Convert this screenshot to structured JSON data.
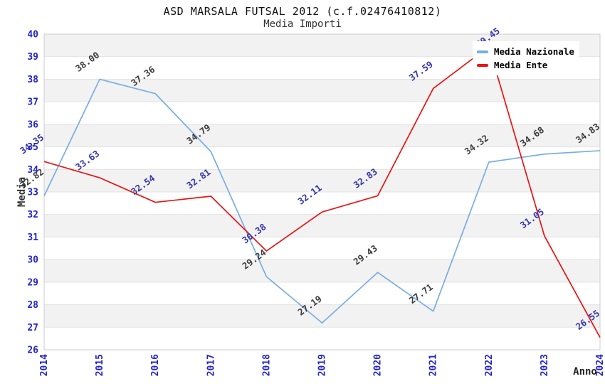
{
  "title": "ASD MARSALA FUTSAL 2012 (c.f.02476410812)",
  "subtitle": "Media Importi",
  "chart_data": {
    "type": "line",
    "x": [
      2014,
      2015,
      2016,
      2017,
      2018,
      2019,
      2020,
      2021,
      2022,
      2023,
      2024
    ],
    "xlabel": "Anno",
    "ylabel": "Media",
    "ylim": [
      26,
      40
    ],
    "yticks": [
      26,
      27,
      28,
      29,
      30,
      31,
      32,
      33,
      34,
      35,
      36,
      37,
      38,
      39,
      40
    ],
    "grid": "horizontal gridlines with alternating shaded bands",
    "legend_position": "top-right",
    "series": [
      {
        "name": "Media Nazionale",
        "color": "#78ade3",
        "label_color": "#3d3d3d",
        "values": [
          32.82,
          38.0,
          37.36,
          34.79,
          29.24,
          27.19,
          29.43,
          27.71,
          34.32,
          34.68,
          34.83
        ]
      },
      {
        "name": "Media Ente",
        "color": "#e81414",
        "label_color": "#3434ad",
        "values": [
          34.35,
          33.63,
          32.54,
          32.81,
          30.38,
          32.11,
          32.83,
          37.59,
          39.45,
          31.05,
          26.55
        ]
      }
    ]
  },
  "colors": {
    "tick_label": "#2323cc",
    "band": "#f2f2f2",
    "grid": "#e2e2e2",
    "border": "#cccccc",
    "legend_bg": "#ffffff"
  }
}
